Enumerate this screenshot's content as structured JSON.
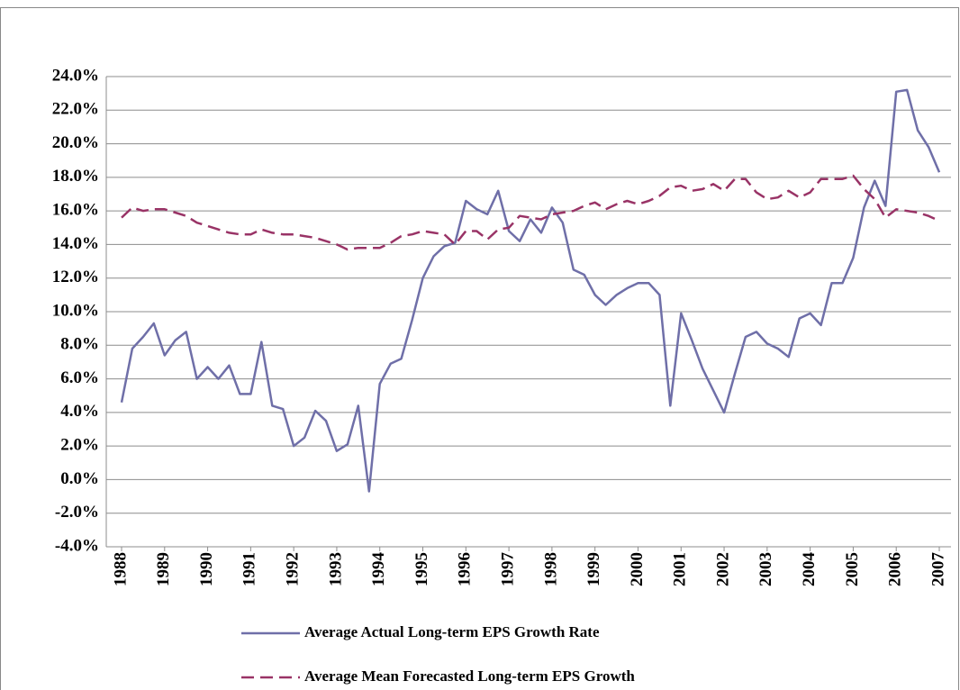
{
  "chart_data": {
    "type": "line",
    "x": [
      1988,
      1988.25,
      1988.5,
      1988.75,
      1989,
      1989.25,
      1989.5,
      1989.75,
      1990,
      1990.25,
      1990.5,
      1990.75,
      1991,
      1991.25,
      1991.5,
      1991.75,
      1992,
      1992.25,
      1992.5,
      1992.75,
      1993,
      1993.25,
      1993.5,
      1993.75,
      1994,
      1994.25,
      1994.5,
      1994.75,
      1995,
      1995.25,
      1995.5,
      1995.75,
      1996,
      1996.25,
      1996.5,
      1996.75,
      1997,
      1997.25,
      1997.5,
      1997.75,
      1998,
      1998.25,
      1998.5,
      1998.75,
      1999,
      1999.25,
      1999.5,
      1999.75,
      2000,
      2000.25,
      2000.5,
      2000.75,
      2001,
      2001.25,
      2001.5,
      2001.75,
      2002,
      2002.25,
      2002.5,
      2002.75,
      2003,
      2003.25,
      2003.5,
      2003.75,
      2004,
      2004.25,
      2004.5,
      2004.75,
      2005,
      2005.25,
      2005.5,
      2005.75,
      2006,
      2006.25,
      2006.5,
      2006.75,
      2007
    ],
    "series": [
      {
        "name": "Average Actual Long-term EPS Growth Rate",
        "color": "#6f6fa8",
        "dash": false,
        "values": [
          4.6,
          7.8,
          8.5,
          9.3,
          7.4,
          8.3,
          8.8,
          6.0,
          6.7,
          6.0,
          6.8,
          5.1,
          5.1,
          8.2,
          4.4,
          4.2,
          2.0,
          2.5,
          4.1,
          3.5,
          1.7,
          2.1,
          4.4,
          -0.7,
          5.7,
          6.9,
          7.2,
          9.5,
          12.0,
          13.3,
          13.9,
          14.1,
          16.6,
          16.1,
          15.8,
          17.2,
          14.8,
          14.2,
          15.5,
          14.7,
          16.2,
          15.3,
          12.5,
          12.2,
          11.0,
          10.4,
          11.0,
          11.4,
          11.7,
          11.7,
          11.0,
          4.4,
          9.9,
          8.3,
          6.6,
          5.3,
          4.0,
          6.3,
          8.5,
          8.8,
          8.1,
          7.8,
          7.3,
          9.6,
          9.9,
          9.2,
          11.7,
          11.7,
          13.2,
          16.2,
          17.8,
          16.3,
          23.1,
          23.2,
          20.8,
          19.8,
          18.3
        ]
      },
      {
        "name": "Average Mean Forecasted Long-term EPS Growth",
        "color": "#993366",
        "dash": true,
        "values": [
          15.6,
          16.2,
          16.0,
          16.1,
          16.1,
          15.9,
          15.7,
          15.3,
          15.1,
          14.9,
          14.7,
          14.6,
          14.6,
          14.9,
          14.7,
          14.6,
          14.6,
          14.5,
          14.4,
          14.2,
          14.0,
          13.7,
          13.8,
          13.8,
          13.8,
          14.1,
          14.5,
          14.6,
          14.8,
          14.7,
          14.6,
          14.0,
          14.8,
          14.8,
          14.3,
          14.9,
          15.0,
          15.7,
          15.6,
          15.5,
          15.8,
          15.9,
          16.0,
          16.3,
          16.5,
          16.1,
          16.4,
          16.6,
          16.4,
          16.6,
          16.9,
          17.4,
          17.5,
          17.2,
          17.3,
          17.6,
          17.2,
          17.9,
          17.9,
          17.1,
          16.7,
          16.8,
          17.2,
          16.8,
          17.1,
          17.9,
          17.9,
          17.9,
          18.1,
          17.3,
          16.7,
          15.6,
          16.1,
          16.0,
          15.9,
          15.7,
          15.4
        ]
      }
    ],
    "xlim": [
      1988,
      2007
    ],
    "xticks": [
      1988,
      1989,
      1990,
      1991,
      1992,
      1993,
      1994,
      1995,
      1996,
      1997,
      1998,
      1999,
      2000,
      2001,
      2002,
      2003,
      2004,
      2005,
      2006,
      2007
    ],
    "ylim": [
      -4,
      24
    ],
    "yticks": [
      {
        "value": -4,
        "label": "-4.0%"
      },
      {
        "value": -2,
        "label": "-2.0%"
      },
      {
        "value": 0,
        "label": "0.0%"
      },
      {
        "value": 2,
        "label": "2.0%"
      },
      {
        "value": 4,
        "label": "4.0%"
      },
      {
        "value": 6,
        "label": "6.0%"
      },
      {
        "value": 8,
        "label": "8.0%"
      },
      {
        "value": 10,
        "label": "10.0%"
      },
      {
        "value": 12,
        "label": "12.0%"
      },
      {
        "value": 14,
        "label": "14.0%"
      },
      {
        "value": 16,
        "label": "16.0%"
      },
      {
        "value": 18,
        "label": "18.0%"
      },
      {
        "value": 20,
        "label": "20.0%"
      },
      {
        "value": 22,
        "label": "22.0%"
      },
      {
        "value": 24,
        "label": "24.0%"
      }
    ],
    "grid": true
  }
}
